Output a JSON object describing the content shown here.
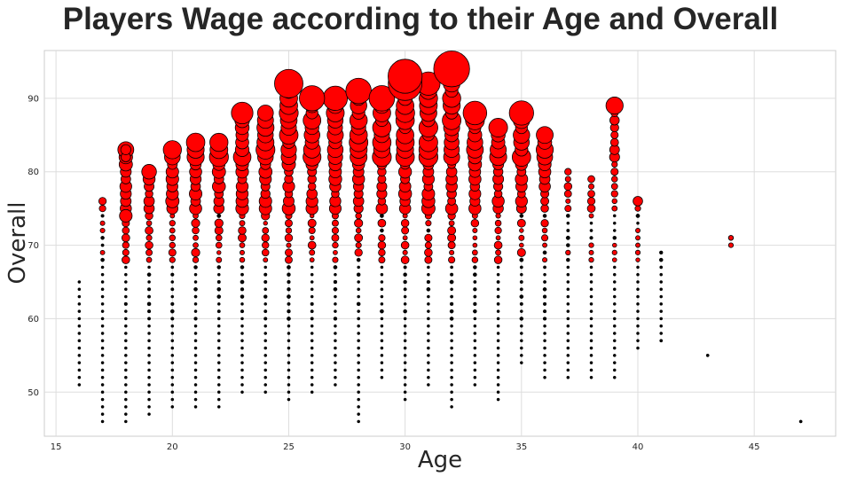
{
  "chart_data": {
    "type": "scatter",
    "title": "Players Wage according to their Age and Overall",
    "xlabel": "Age",
    "ylabel": "Overall",
    "xlim": [
      14.5,
      48.5
    ],
    "ylim": [
      44,
      96.5
    ],
    "xticks": [
      15,
      20,
      25,
      30,
      35,
      40,
      45
    ],
    "yticks": [
      50,
      60,
      70,
      80,
      90
    ],
    "grid": true,
    "marker_color": "#ff0000",
    "marker_edge_color": "#000000",
    "size_encodes": "wage",
    "age_ranges": [
      {
        "age": 16,
        "min": 51,
        "max": 65
      },
      {
        "age": 17,
        "min": 46,
        "max": 76
      },
      {
        "age": 18,
        "min": 46,
        "max": 83
      },
      {
        "age": 19,
        "min": 47,
        "max": 80
      },
      {
        "age": 20,
        "min": 48,
        "max": 83
      },
      {
        "age": 21,
        "min": 48,
        "max": 84
      },
      {
        "age": 22,
        "min": 48,
        "max": 84
      },
      {
        "age": 23,
        "min": 50,
        "max": 88
      },
      {
        "age": 24,
        "min": 50,
        "max": 88
      },
      {
        "age": 25,
        "min": 49,
        "max": 92
      },
      {
        "age": 26,
        "min": 50,
        "max": 90
      },
      {
        "age": 27,
        "min": 51,
        "max": 90
      },
      {
        "age": 28,
        "min": 46,
        "max": 91
      },
      {
        "age": 29,
        "min": 52,
        "max": 90
      },
      {
        "age": 30,
        "min": 49,
        "max": 93
      },
      {
        "age": 31,
        "min": 51,
        "max": 92
      },
      {
        "age": 32,
        "min": 48,
        "max": 94
      },
      {
        "age": 33,
        "min": 51,
        "max": 88
      },
      {
        "age": 34,
        "min": 49,
        "max": 86
      },
      {
        "age": 35,
        "min": 54,
        "max": 88
      },
      {
        "age": 36,
        "min": 52,
        "max": 85
      },
      {
        "age": 37,
        "min": 52,
        "max": 80
      },
      {
        "age": 38,
        "min": 52,
        "max": 79
      },
      {
        "age": 39,
        "min": 52,
        "max": 89
      },
      {
        "age": 40,
        "min": 56,
        "max": 76
      },
      {
        "age": 41,
        "min": 57,
        "max": 69
      },
      {
        "age": 43,
        "min": 55,
        "max": 55
      },
      {
        "age": 44,
        "min": 70,
        "max": 71
      },
      {
        "age": 47,
        "min": 46,
        "max": 46
      }
    ],
    "highlighted_points": [
      {
        "age": 32,
        "overall": 94,
        "wage": 565
      },
      {
        "age": 30,
        "overall": 93,
        "wage": 510
      },
      {
        "age": 30,
        "overall": 92,
        "wage": 500
      },
      {
        "age": 25,
        "overall": 92,
        "wage": 355
      },
      {
        "age": 31,
        "overall": 92,
        "wage": 240
      },
      {
        "age": 28,
        "overall": 91,
        "wage": 285
      },
      {
        "age": 27,
        "overall": 90,
        "wage": 260
      },
      {
        "age": 26,
        "overall": 90,
        "wage": 280
      },
      {
        "age": 29,
        "overall": 90,
        "wage": 285
      },
      {
        "age": 39,
        "overall": 89,
        "wage": 130
      },
      {
        "age": 35,
        "overall": 88,
        "wage": 260
      },
      {
        "age": 23,
        "overall": 88,
        "wage": 205
      },
      {
        "age": 33,
        "overall": 88,
        "wage": 245
      },
      {
        "age": 36,
        "overall": 85,
        "wage": 125
      },
      {
        "age": 34,
        "overall": 86,
        "wage": 155
      },
      {
        "age": 21,
        "overall": 84,
        "wage": 150
      },
      {
        "age": 22,
        "overall": 84,
        "wage": 145
      },
      {
        "age": 20,
        "overall": 83,
        "wage": 145
      },
      {
        "age": 19,
        "overall": 80,
        "wage": 95
      },
      {
        "age": 18,
        "overall": 83,
        "wage": 45
      },
      {
        "age": 18,
        "overall": 82,
        "wage": 40
      },
      {
        "age": 18,
        "overall": 74,
        "wage": 70
      },
      {
        "age": 40,
        "overall": 76,
        "wage": 40
      },
      {
        "age": 44,
        "overall": 71,
        "wage": 10
      },
      {
        "age": 44,
        "overall": 70,
        "wage": 10
      },
      {
        "age": 43,
        "overall": 55,
        "wage": 3
      },
      {
        "age": 47,
        "overall": 46,
        "wage": 3
      },
      {
        "age": 41,
        "overall": 69,
        "wage": 3
      },
      {
        "age": 41,
        "overall": 67,
        "wage": 3
      },
      {
        "age": 41,
        "overall": 57,
        "wage": 3
      }
    ]
  }
}
